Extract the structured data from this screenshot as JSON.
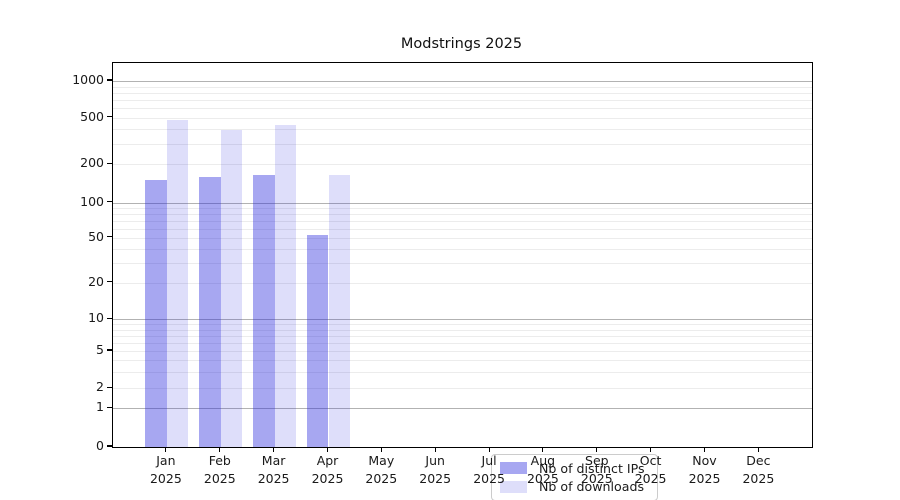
{
  "chart_data": {
    "type": "bar",
    "title": "Modstrings 2025",
    "scale_y": "symlog",
    "grid": "on",
    "x_year": "2025",
    "categories": [
      "Jan",
      "Feb",
      "Mar",
      "Apr",
      "May",
      "Jun",
      "Jul",
      "Aug",
      "Sep",
      "Oct",
      "Nov",
      "Dec"
    ],
    "series": [
      {
        "name": "Nb of distinct IPs",
        "color": "#2222dd",
        "alpha": 0.4,
        "values": [
          150,
          160,
          165,
          53,
          0,
          0,
          0,
          0,
          0,
          0,
          0,
          0
        ]
      },
      {
        "name": "Nb of downloads",
        "color": "#2222dd",
        "alpha": 0.15,
        "values": [
          480,
          390,
          430,
          165,
          0,
          0,
          0,
          0,
          0,
          0,
          0,
          0
        ]
      }
    ],
    "y_ticks": [
      0,
      1,
      2,
      5,
      10,
      20,
      50,
      100,
      200,
      500,
      1000
    ],
    "ylim": [
      0,
      1400
    ],
    "legend": {
      "position": "lower center",
      "entries": [
        "Nb of distinct IPs",
        "Nb of downloads"
      ]
    },
    "colors": {
      "major_grid": "#b2b2b2",
      "minor_grid": "#ececec",
      "axis": "#000000",
      "bar_dark_rendered": "#a7a7f0",
      "bar_light_rendered": "#dddcf9"
    }
  }
}
